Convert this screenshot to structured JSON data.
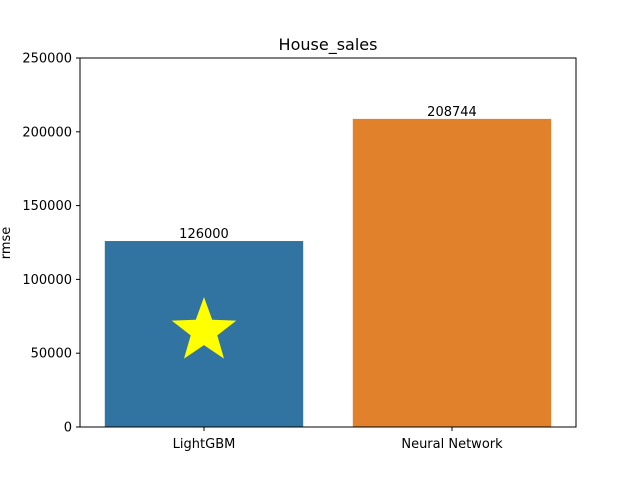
{
  "chart_data": {
    "type": "bar",
    "title": "House_sales",
    "xlabel": "",
    "ylabel": "rmse",
    "ylim": [
      0,
      250000
    ],
    "yticks": [
      0,
      50000,
      100000,
      150000,
      200000,
      250000
    ],
    "categories": [
      "LightGBM",
      "Neural Network"
    ],
    "values": [
      126000,
      208744
    ],
    "data_labels": [
      "126000",
      "208744"
    ],
    "bar_colors": [
      "#3274a1",
      "#e1812c"
    ],
    "annotations": [
      {
        "type": "star-marker",
        "category": "LightGBM",
        "y": 65000,
        "color": "#ffff00"
      }
    ],
    "grid": false,
    "legend": "none"
  }
}
